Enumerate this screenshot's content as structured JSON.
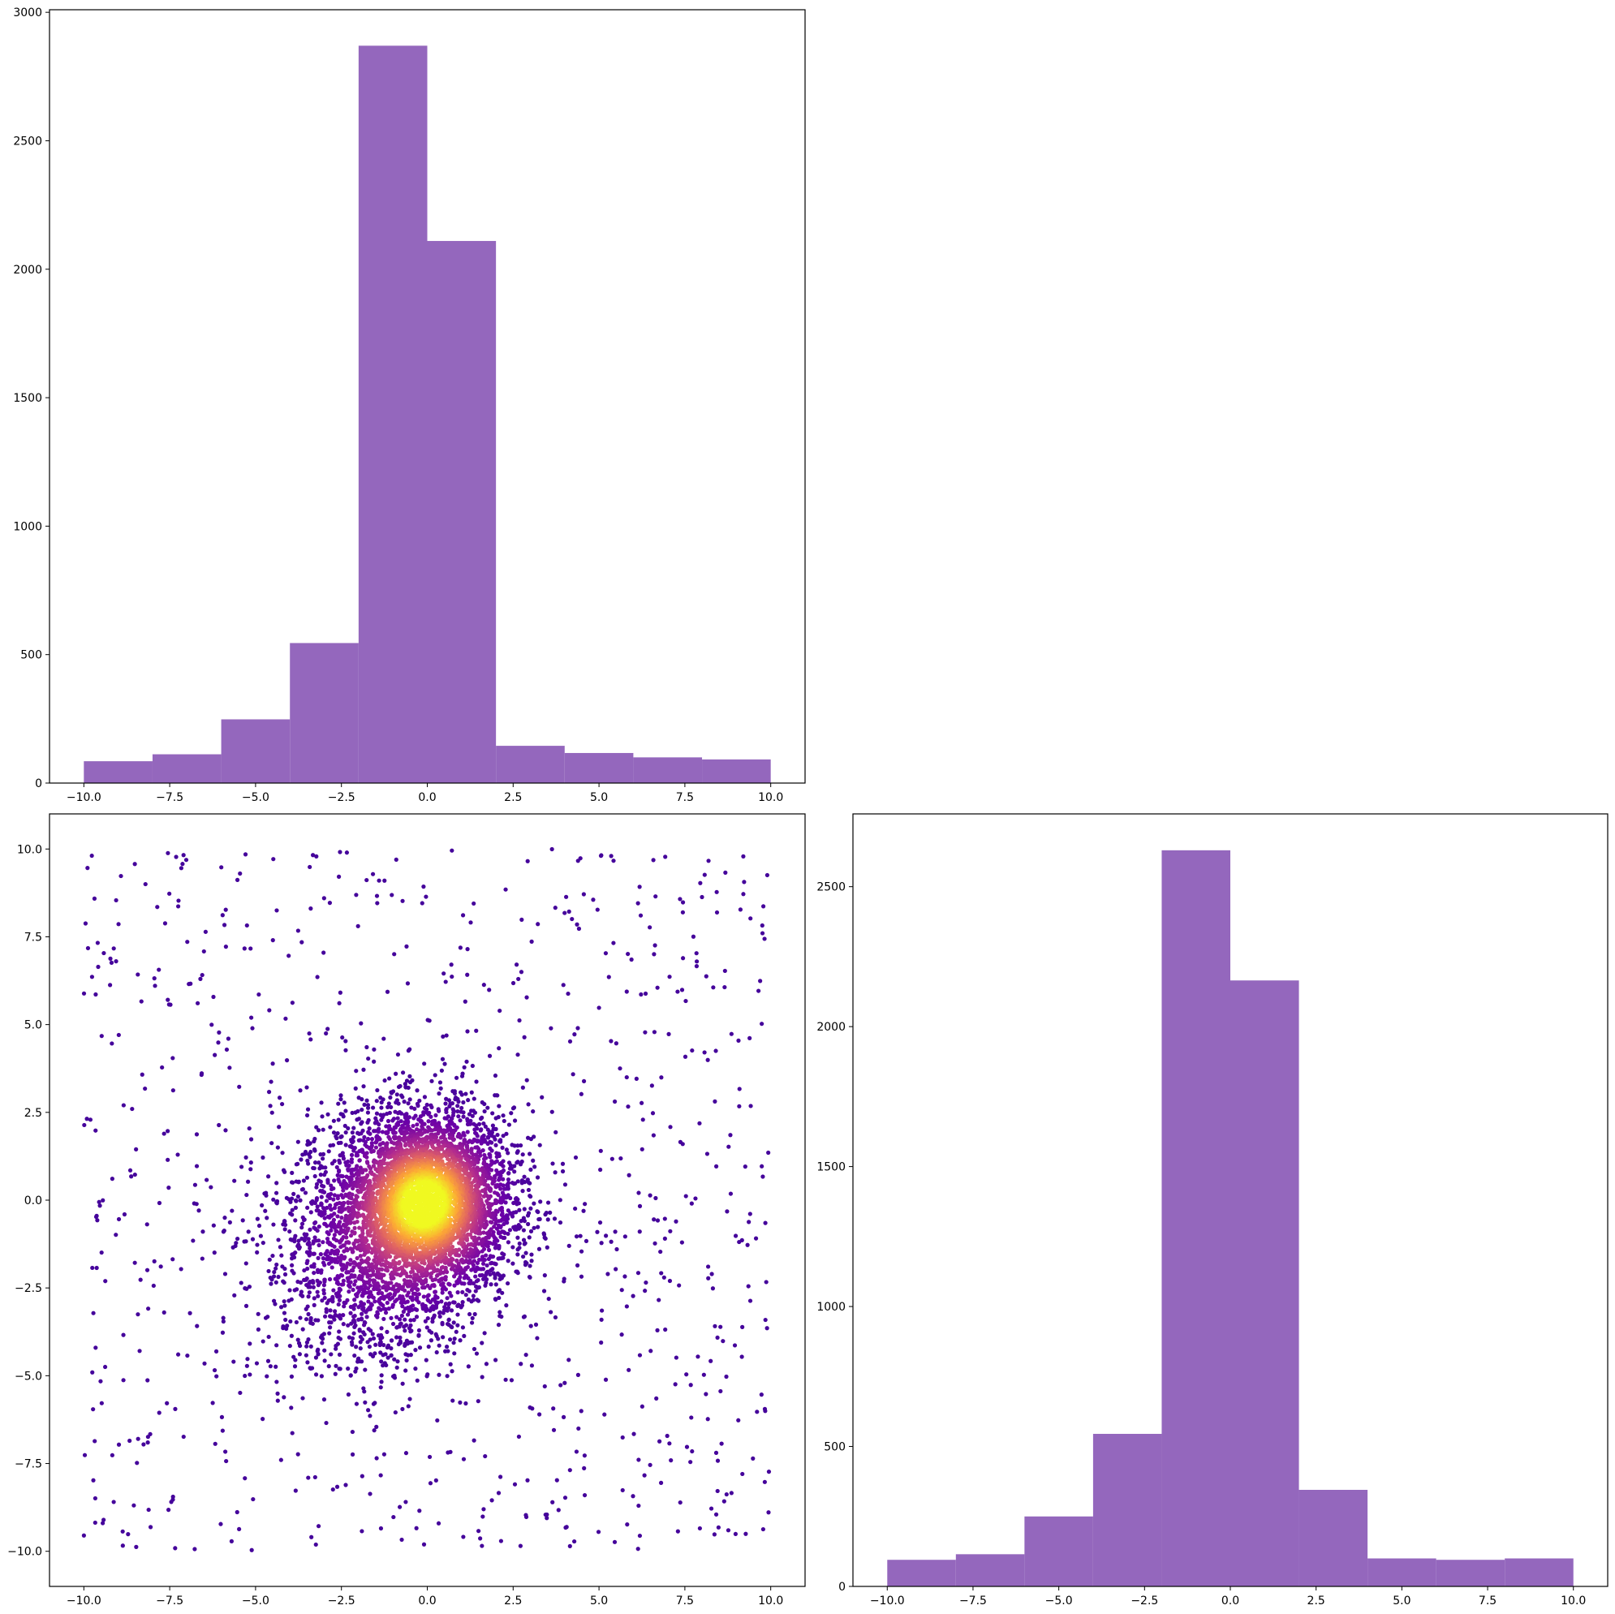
{
  "chart_data": [
    {
      "panel": "top-left",
      "type": "histogram",
      "bin_edges": [
        -10,
        -8,
        -6,
        -4,
        -2,
        0,
        2,
        4,
        6,
        8,
        10
      ],
      "values": [
        85,
        112,
        248,
        545,
        2870,
        2110,
        145,
        117,
        100,
        92
      ],
      "color": "#9467bd",
      "xlim": [
        -11,
        11
      ],
      "ylim": [
        0,
        3010
      ],
      "xticks": [
        -10.0,
        -7.5,
        -5.0,
        -2.5,
        0.0,
        2.5,
        5.0,
        7.5,
        10.0
      ],
      "xtick_labels": [
        "−10.0",
        "−7.5",
        "−5.0",
        "−2.5",
        "0.0",
        "2.5",
        "5.0",
        "7.5",
        "10.0"
      ],
      "yticks": [
        0,
        500,
        1000,
        1500,
        2000,
        2500,
        3000
      ],
      "ytick_labels": [
        "0",
        "500",
        "1000",
        "1500",
        "2000",
        "2500",
        "3000"
      ]
    },
    {
      "panel": "bottom-left",
      "type": "scatter",
      "description_of_points": "about 6400 points: dense blob centered at (0,0) with ~1.3 spread, looser cloud around (-1.5,-1.5), plus uniform background over [-10,10]x[-10,10]; colored by local density with plasma colormap",
      "colormap": [
        "#0d0887",
        "#6a00a8",
        "#b12a90",
        "#e16462",
        "#fca636",
        "#f0f921"
      ],
      "xlim": [
        -11,
        11
      ],
      "ylim": [
        -11,
        11
      ],
      "xticks": [
        -10.0,
        -7.5,
        -5.0,
        -2.5,
        0.0,
        2.5,
        5.0,
        7.5,
        10.0
      ],
      "xtick_labels": [
        "−10.0",
        "−7.5",
        "−5.0",
        "−2.5",
        "0.0",
        "2.5",
        "5.0",
        "7.5",
        "10.0"
      ],
      "yticks": [
        -10.0,
        -7.5,
        -5.0,
        -2.5,
        0.0,
        2.5,
        5.0,
        7.5,
        10.0
      ],
      "ytick_labels": [
        "−10.0",
        "−7.5",
        "−5.0",
        "−2.5",
        "0.0",
        "2.5",
        "5.0",
        "7.5",
        "10.0"
      ]
    },
    {
      "panel": "bottom-right",
      "type": "histogram",
      "bin_edges": [
        -10,
        -8,
        -6,
        -4,
        -2,
        0,
        2,
        4,
        6,
        8,
        10
      ],
      "values": [
        95,
        115,
        250,
        545,
        2630,
        2165,
        345,
        100,
        95,
        100
      ],
      "color": "#9467bd",
      "xlim": [
        -11,
        11
      ],
      "ylim": [
        0,
        2760
      ],
      "xticks": [
        -10.0,
        -7.5,
        -5.0,
        -2.5,
        0.0,
        2.5,
        5.0,
        7.5,
        10.0
      ],
      "xtick_labels": [
        "−10.0",
        "−7.5",
        "−5.0",
        "−2.5",
        "0.0",
        "2.5",
        "5.0",
        "7.5",
        "10.0"
      ],
      "yticks": [
        0,
        500,
        1000,
        1500,
        2000,
        2500
      ],
      "ytick_labels": [
        "0",
        "500",
        "1000",
        "1500",
        "2000",
        "2500"
      ]
    }
  ]
}
